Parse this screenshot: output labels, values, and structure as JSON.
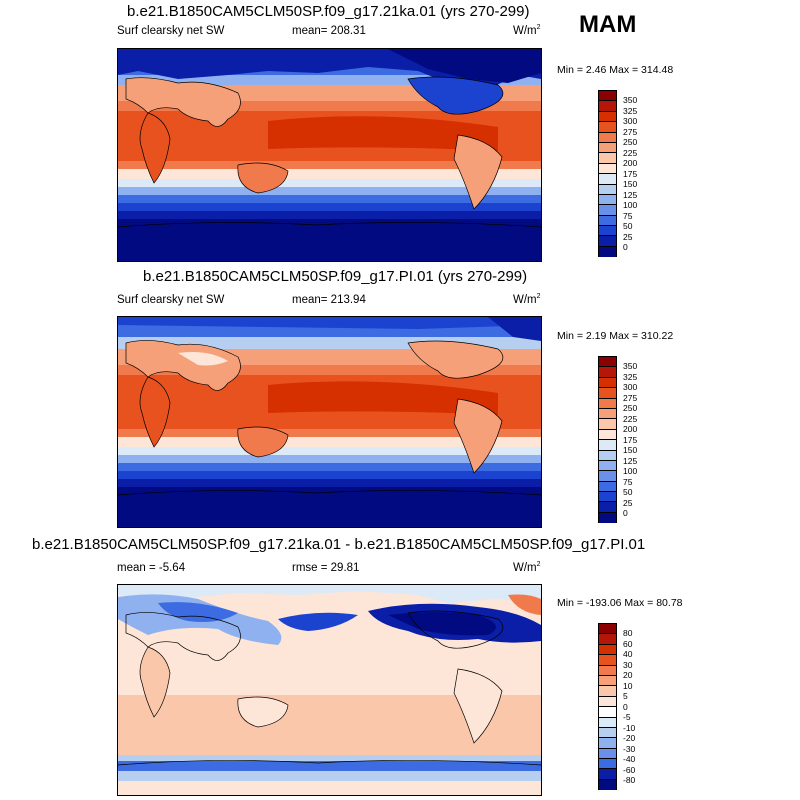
{
  "season": "MAM",
  "units": "W/m",
  "units_exp": "2",
  "panels": [
    {
      "title": "b.e21.B1850CAM5CLM50SP.f09_g17.21ka.01 (yrs 270-299)",
      "left_label": "Surf clearsky net SW",
      "center_label": "mean= 208.31",
      "minmax": "Min =  2.46 Max = 314.48",
      "levels": [
        "350",
        "325",
        "300",
        "275",
        "250",
        "225",
        "200",
        "175",
        "150",
        "125",
        "100",
        "75",
        "50",
        "25",
        "0"
      ],
      "colors": [
        "#8b0000",
        "#b4170a",
        "#d62f00",
        "#e8521f",
        "#f07a4c",
        "#f6a07a",
        "#fbc7aa",
        "#fde6d8",
        "#dce9f7",
        "#b6cff1",
        "#8fb1ef",
        "#6a90ea",
        "#3c6be2",
        "#1b43d0",
        "#0a1ea8",
        "#020a82"
      ],
      "map_type": "ka"
    },
    {
      "title": "b.e21.B1850CAM5CLM50SP.f09_g17.PI.01 (yrs 270-299)",
      "left_label": "Surf clearsky net SW",
      "center_label": "mean= 213.94",
      "minmax": "Min =  2.19 Max = 310.22",
      "levels": [
        "350",
        "325",
        "300",
        "275",
        "250",
        "225",
        "200",
        "175",
        "150",
        "125",
        "100",
        "75",
        "50",
        "25",
        "0"
      ],
      "colors": [
        "#8b0000",
        "#b4170a",
        "#d62f00",
        "#e8521f",
        "#f07a4c",
        "#f6a07a",
        "#fbc7aa",
        "#fde6d8",
        "#dce9f7",
        "#b6cff1",
        "#8fb1ef",
        "#6a90ea",
        "#3c6be2",
        "#1b43d0",
        "#0a1ea8",
        "#020a82"
      ],
      "map_type": "pi"
    },
    {
      "title": "b.e21.B1850CAM5CLM50SP.f09_g17.21ka.01 - b.e21.B1850CAM5CLM50SP.f09_g17.PI.01",
      "left_label": "mean =  -5.64",
      "center_label": "rmse =  29.81",
      "minmax": "Min = -193.06 Max =  80.78",
      "levels": [
        "80",
        "60",
        "40",
        "30",
        "20",
        "10",
        "5",
        "0",
        "-5",
        "-10",
        "-20",
        "-30",
        "-40",
        "-60",
        "-80"
      ],
      "colors": [
        "#8b0000",
        "#b4170a",
        "#d62f00",
        "#e8521f",
        "#f07a4c",
        "#f6a07a",
        "#fbc7aa",
        "#fde6d8",
        "#ffffff",
        "#dce9f7",
        "#b6cff1",
        "#8fb1ef",
        "#6a90ea",
        "#3c6be2",
        "#0a1ea8",
        "#020a82"
      ],
      "map_type": "diff"
    }
  ]
}
